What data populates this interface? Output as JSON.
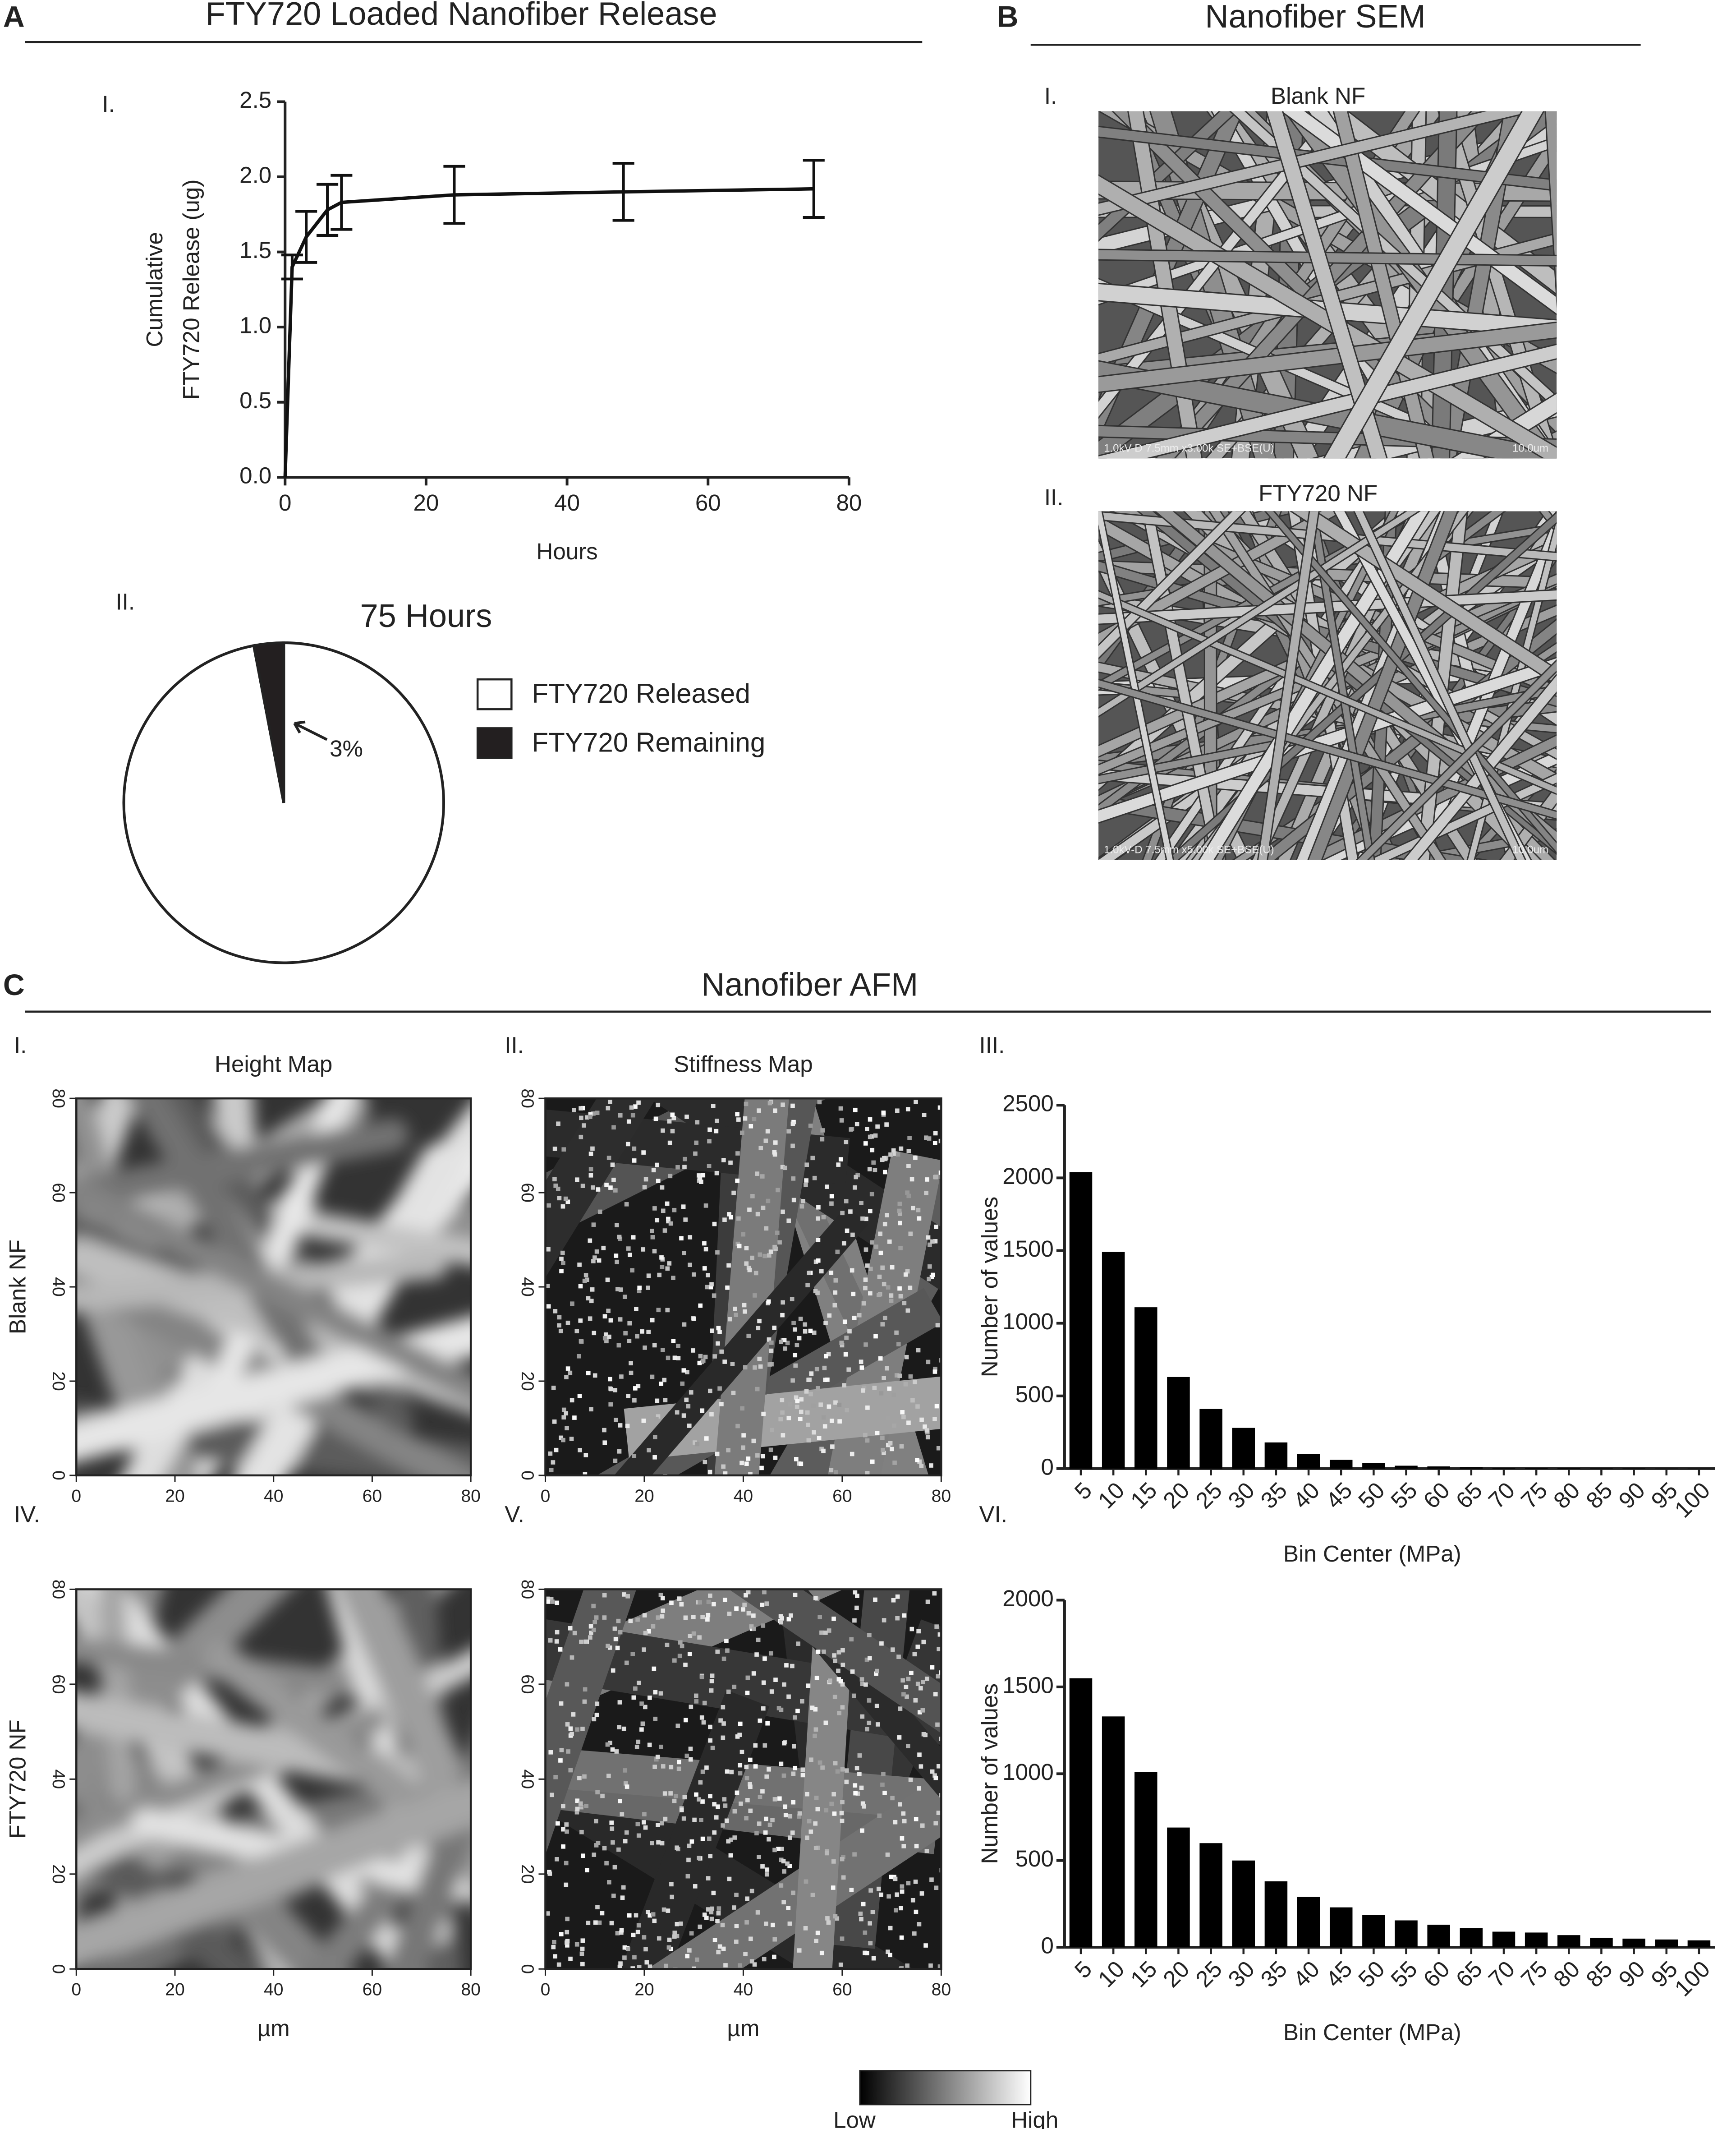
{
  "sections": [
    {
      "letter": "A",
      "title": "FTY720 Loaded Nanofiber Release"
    },
    {
      "letter": "B",
      "title": "Nanofiber SEM"
    },
    {
      "letter": "C",
      "title": "Nanofiber AFM"
    }
  ],
  "sem": [
    {
      "label": "I.",
      "title": "Blank NF",
      "info": "1.0kV-D 7.5mm x3.00k SE+BSE(U)",
      "scale": "10.0um"
    },
    {
      "label": "II.",
      "title": "FTY720 NF",
      "info": "1.0kV-D 7.5mm x5.00k SE+BSE(U)",
      "scale": "10.0um"
    }
  ],
  "colorbar": {
    "low": "Low",
    "high": "High"
  },
  "chart_data": [
    {
      "type": "line",
      "label": "I.",
      "x": [
        0,
        1,
        3,
        6,
        8,
        24,
        48,
        75
      ],
      "values": [
        0,
        1.4,
        1.6,
        1.78,
        1.83,
        1.88,
        1.9,
        1.92
      ],
      "errors": [
        null,
        0.08,
        0.17,
        0.17,
        0.18,
        0.19,
        0.19,
        0.19
      ],
      "color": "#111111",
      "xlabel": "Hours",
      "ylabel": [
        "Cumulative",
        "FTY720 Release (ug)"
      ],
      "xlim": [
        0,
        80
      ],
      "xticks": [
        0,
        20,
        40,
        60,
        80
      ],
      "ylim": [
        0,
        2.5
      ],
      "yticks": [
        {
          "value": 0,
          "label": "0.0"
        },
        {
          "value": 0.5,
          "label": "0.5"
        },
        {
          "value": 1,
          "label": "1.0"
        },
        {
          "value": 1.5,
          "label": "1.5"
        },
        {
          "value": 2,
          "label": "2.0"
        },
        {
          "value": 2.5,
          "label": "2.5"
        }
      ]
    },
    {
      "type": "pie",
      "label": "II.",
      "title": "75 Hours",
      "categories": [
        "FTY720 Released",
        "FTY720 Remaining"
      ],
      "values": [
        97,
        3
      ],
      "value_labels": [
        null,
        "3%"
      ],
      "colors": [
        "#ffffff",
        "#231f20"
      ]
    },
    {
      "type": "bar",
      "label": "III.",
      "xlabel": "Bin Center (MPa)",
      "ylabel": "Number of values",
      "color": "#000000",
      "categories": [
        "5",
        "10",
        "15",
        "20",
        "25",
        "30",
        "35",
        "40",
        "45",
        "50",
        "55",
        "60",
        "65",
        "70",
        "75",
        "80",
        "85",
        "90",
        "95",
        "100"
      ],
      "values": [
        2040,
        1490,
        1110,
        630,
        410,
        280,
        180,
        100,
        60,
        40,
        20,
        15,
        10,
        5,
        5,
        3,
        2,
        2,
        1,
        1
      ],
      "ylim": [
        0,
        2500
      ],
      "yticks": [
        0,
        500,
        1000,
        1500,
        2000,
        2500
      ]
    },
    {
      "type": "bar",
      "label": "VI.",
      "xlabel": "Bin Center (MPa)",
      "ylabel": "Number of values",
      "color": "#000000",
      "categories": [
        "5",
        "10",
        "15",
        "20",
        "25",
        "30",
        "35",
        "40",
        "45",
        "50",
        "55",
        "60",
        "65",
        "70",
        "75",
        "80",
        "85",
        "90",
        "95",
        "100"
      ],
      "values": [
        1550,
        1330,
        1010,
        690,
        600,
        500,
        380,
        290,
        230,
        185,
        155,
        130,
        110,
        90,
        85,
        70,
        55,
        50,
        45,
        40
      ],
      "ylim": [
        0,
        2000
      ],
      "yticks": [
        0,
        500,
        1000,
        1500,
        2000
      ]
    },
    {
      "type": "map",
      "label": "I.",
      "title": "Height Map",
      "row_label": "Blank NF",
      "xlim": [
        0,
        80
      ],
      "ylim": [
        0,
        80
      ],
      "xticks": [
        0,
        20,
        40,
        60,
        80
      ],
      "yticks": [
        0,
        20,
        40,
        60,
        80
      ]
    },
    {
      "type": "map",
      "label": "II.",
      "title": "Stiffness Map",
      "xlim": [
        0,
        80
      ],
      "ylim": [
        0,
        80
      ],
      "xticks": [
        0,
        20,
        40,
        60,
        80
      ],
      "yticks": [
        0,
        20,
        40,
        60,
        80
      ]
    },
    {
      "type": "map",
      "label": "IV.",
      "row_label": "FTY720 NF",
      "xlabel": "µm",
      "xlim": [
        0,
        80
      ],
      "ylim": [
        0,
        80
      ],
      "xticks": [
        0,
        20,
        40,
        60,
        80
      ],
      "yticks": [
        0,
        20,
        40,
        60,
        80
      ]
    },
    {
      "type": "map",
      "label": "V.",
      "xlabel": "µm",
      "xlim": [
        0,
        80
      ],
      "ylim": [
        0,
        80
      ],
      "xticks": [
        0,
        20,
        40,
        60,
        80
      ],
      "yticks": [
        0,
        20,
        40,
        60,
        80
      ]
    }
  ]
}
